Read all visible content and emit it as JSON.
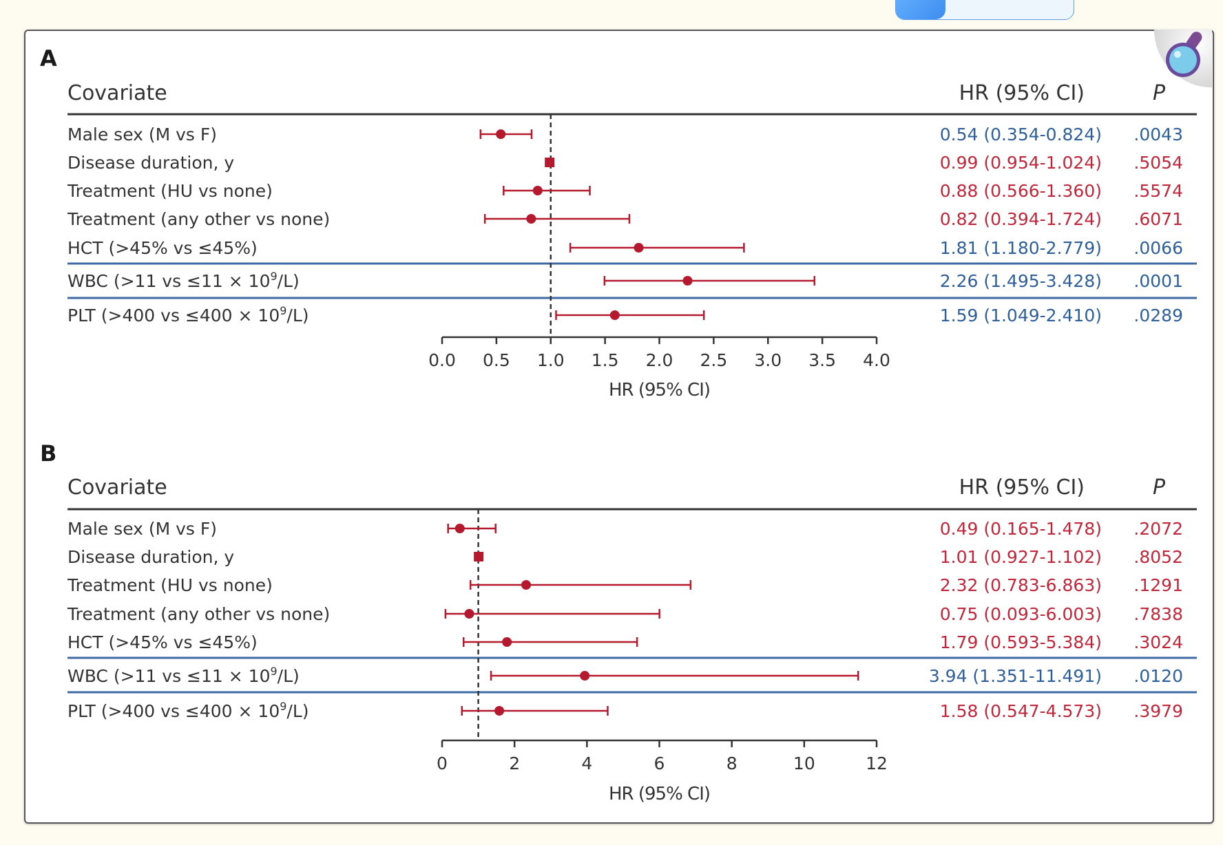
{
  "top_button": {
    "label": ""
  },
  "colors": {
    "significant": "#2f5f9a",
    "nonsignificant": "#c0273a",
    "marker": "#b5192d",
    "separator_blue": "#3d6aa2",
    "header_line": "#333333",
    "text": "#333333"
  },
  "chart_data": [
    {
      "type": "forest",
      "panel_label": "A",
      "columns": {
        "covariate": "Covariate",
        "hr": "HR (95% CI)",
        "p": "P"
      },
      "xlabel": "HR (95% CI)",
      "xlim": [
        0,
        4
      ],
      "xticks": [
        "0.0",
        "0.5",
        "1.0",
        "1.5",
        "2.0",
        "2.5",
        "3.0",
        "3.5",
        "4.0"
      ],
      "xtick_values": [
        0,
        0.5,
        1,
        1.5,
        2,
        2.5,
        3,
        3.5,
        4
      ],
      "reference_line": 1,
      "rows": [
        {
          "covariate": "Male sex (M vs F)",
          "hr": 0.54,
          "lo": 0.354,
          "hi": 0.824,
          "hr_text": "0.54 (0.354-0.824)",
          "p": ".0043",
          "significant": true,
          "marker": "circle"
        },
        {
          "covariate": "Disease duration, y",
          "hr": 0.99,
          "lo": 0.954,
          "hi": 1.024,
          "hr_text": "0.99 (0.954-1.024)",
          "p": ".5054",
          "significant": false,
          "marker": "square"
        },
        {
          "covariate": "Treatment (HU vs none)",
          "hr": 0.88,
          "lo": 0.566,
          "hi": 1.36,
          "hr_text": "0.88 (0.566-1.360)",
          "p": ".5574",
          "significant": false,
          "marker": "circle"
        },
        {
          "covariate": "Treatment (any other vs none)",
          "hr": 0.82,
          "lo": 0.394,
          "hi": 1.724,
          "hr_text": "0.82 (0.394-1.724)",
          "p": ".6071",
          "significant": false,
          "marker": "circle"
        },
        {
          "covariate": "HCT (>45% vs ≤45%)",
          "hr": 1.81,
          "lo": 1.18,
          "hi": 2.779,
          "hr_text": "1.81 (1.180-2.779)",
          "p": ".0066",
          "significant": true,
          "marker": "circle"
        },
        {
          "covariate": "WBC (>11 vs ≤11 × 10",
          "covariate_sup": "9",
          "covariate_tail": "/L)",
          "hr": 2.26,
          "lo": 1.495,
          "hi": 3.428,
          "hr_text": "2.26 (1.495-3.428)",
          "p": ".0001",
          "significant": true,
          "marker": "circle"
        },
        {
          "covariate": "PLT (>400 vs ≤400 × 10",
          "covariate_sup": "9",
          "covariate_tail": "/L)",
          "hr": 1.59,
          "lo": 1.049,
          "hi": 2.41,
          "hr_text": "1.59 (1.049-2.410)",
          "p": ".0289",
          "significant": true,
          "marker": "circle"
        }
      ]
    },
    {
      "type": "forest",
      "panel_label": "B",
      "columns": {
        "covariate": "Covariate",
        "hr": "HR (95% CI)",
        "p": "P"
      },
      "xlabel": "HR (95% CI)",
      "xlim": [
        0,
        12
      ],
      "xticks": [
        "0",
        "2",
        "4",
        "6",
        "8",
        "10",
        "12"
      ],
      "xtick_values": [
        0,
        2,
        4,
        6,
        8,
        10,
        12
      ],
      "reference_line": 1,
      "rows": [
        {
          "covariate": "Male sex (M vs F)",
          "hr": 0.49,
          "lo": 0.165,
          "hi": 1.478,
          "hr_text": "0.49 (0.165-1.478)",
          "p": ".2072",
          "significant": false,
          "marker": "circle"
        },
        {
          "covariate": "Disease duration, y",
          "hr": 1.01,
          "lo": 0.927,
          "hi": 1.102,
          "hr_text": "1.01 (0.927-1.102)",
          "p": ".8052",
          "significant": false,
          "marker": "square"
        },
        {
          "covariate": "Treatment (HU vs none)",
          "hr": 2.32,
          "lo": 0.783,
          "hi": 6.863,
          "hr_text": "2.32 (0.783-6.863)",
          "p": ".1291",
          "significant": false,
          "marker": "circle"
        },
        {
          "covariate": "Treatment (any other vs none)",
          "hr": 0.75,
          "lo": 0.093,
          "hi": 6.003,
          "hr_text": "0.75 (0.093-6.003)",
          "p": ".7838",
          "significant": false,
          "marker": "circle"
        },
        {
          "covariate": "HCT (>45% vs ≤45%)",
          "hr": 1.79,
          "lo": 0.593,
          "hi": 5.384,
          "hr_text": "1.79 (0.593-5.384)",
          "p": ".3024",
          "significant": false,
          "marker": "circle"
        },
        {
          "covariate": "WBC (>11 vs ≤11 × 10",
          "covariate_sup": "9",
          "covariate_tail": "/L)",
          "hr": 3.94,
          "lo": 1.351,
          "hi": 11.491,
          "hr_text": "3.94 (1.351-11.491)",
          "p": ".0120",
          "significant": true,
          "marker": "circle"
        },
        {
          "covariate": "PLT (>400 vs ≤400 × 10",
          "covariate_sup": "9",
          "covariate_tail": "/L)",
          "hr": 1.58,
          "lo": 0.547,
          "hi": 4.573,
          "hr_text": "1.58 (0.547-4.573)",
          "p": ".3979",
          "significant": false,
          "marker": "circle"
        }
      ]
    }
  ]
}
